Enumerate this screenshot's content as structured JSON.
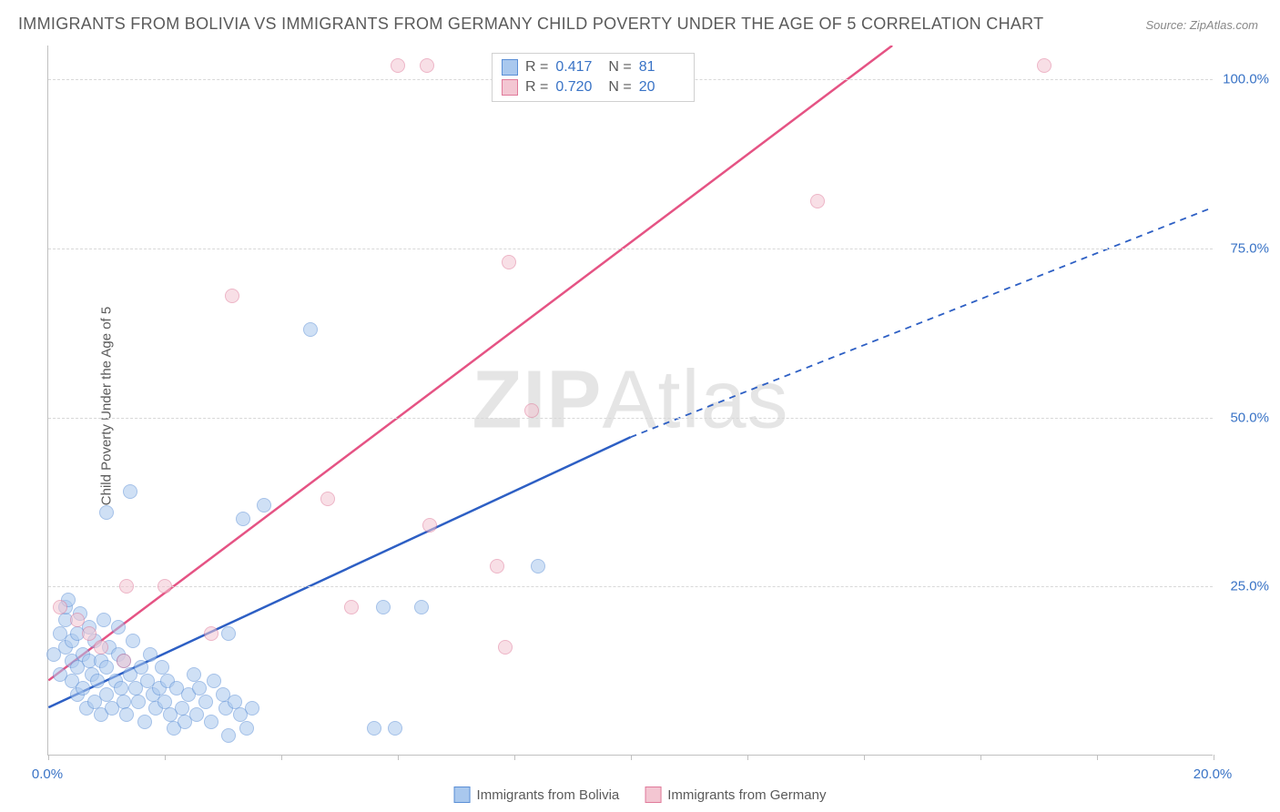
{
  "title": "IMMIGRANTS FROM BOLIVIA VS IMMIGRANTS FROM GERMANY CHILD POVERTY UNDER THE AGE OF 5 CORRELATION CHART",
  "source": "Source: ZipAtlas.com",
  "y_axis_label": "Child Poverty Under the Age of 5",
  "watermark_bold": "ZIP",
  "watermark_light": "Atlas",
  "chart": {
    "type": "scatter-with-regression",
    "xlim": [
      0,
      20
    ],
    "ylim": [
      0,
      105
    ],
    "x_ticks": [
      0,
      2,
      4,
      6,
      8,
      10,
      12,
      14,
      16,
      18,
      20
    ],
    "x_tick_labels": [
      "0.0%",
      "",
      "",
      "",
      "",
      "",
      "",
      "",
      "",
      "",
      "20.0%"
    ],
    "y_ticks": [
      25,
      50,
      75,
      100
    ],
    "y_tick_labels": [
      "25.0%",
      "50.0%",
      "75.0%",
      "100.0%"
    ],
    "grid_color": "#d8d8d8",
    "axis_color": "#c0c0c0",
    "background": "#ffffff",
    "tick_label_color": "#3973c6",
    "series": [
      {
        "name": "Immigrants from Bolivia",
        "color_fill": "#a9c8ee",
        "color_stroke": "#5b8fd6",
        "line_color": "#2d5fc4",
        "r": "0.417",
        "n": "81",
        "regression_solid": {
          "x1": 0,
          "y1": 7,
          "x2": 10,
          "y2": 47
        },
        "regression_dashed": {
          "x1": 10,
          "y1": 47,
          "x2": 20,
          "y2": 81
        },
        "points": [
          [
            0.1,
            15
          ],
          [
            0.2,
            18
          ],
          [
            0.2,
            12
          ],
          [
            0.3,
            20
          ],
          [
            0.3,
            16
          ],
          [
            0.3,
            22
          ],
          [
            0.35,
            23
          ],
          [
            0.4,
            14
          ],
          [
            0.4,
            17
          ],
          [
            0.4,
            11
          ],
          [
            0.5,
            9
          ],
          [
            0.5,
            13
          ],
          [
            0.5,
            18
          ],
          [
            0.55,
            21
          ],
          [
            0.6,
            15
          ],
          [
            0.6,
            10
          ],
          [
            0.65,
            7
          ],
          [
            0.7,
            19
          ],
          [
            0.7,
            14
          ],
          [
            0.75,
            12
          ],
          [
            0.8,
            8
          ],
          [
            0.8,
            17
          ],
          [
            0.85,
            11
          ],
          [
            0.9,
            6
          ],
          [
            0.9,
            14
          ],
          [
            0.95,
            20
          ],
          [
            1.0,
            9
          ],
          [
            1.0,
            13
          ],
          [
            1.05,
            16
          ],
          [
            1.1,
            7
          ],
          [
            1.15,
            11
          ],
          [
            1.2,
            15
          ],
          [
            1.2,
            19
          ],
          [
            1.25,
            10
          ],
          [
            1.3,
            8
          ],
          [
            1.3,
            14
          ],
          [
            1.35,
            6
          ],
          [
            1.4,
            12
          ],
          [
            1.45,
            17
          ],
          [
            1.5,
            10
          ],
          [
            1.55,
            8
          ],
          [
            1.6,
            13
          ],
          [
            1.65,
            5
          ],
          [
            1.7,
            11
          ],
          [
            1.75,
            15
          ],
          [
            1.8,
            9
          ],
          [
            1.85,
            7
          ],
          [
            1.9,
            10
          ],
          [
            1.95,
            13
          ],
          [
            2.0,
            8
          ],
          [
            2.05,
            11
          ],
          [
            2.1,
            6
          ],
          [
            2.15,
            4
          ],
          [
            2.2,
            10
          ],
          [
            2.3,
            7
          ],
          [
            2.35,
            5
          ],
          [
            2.4,
            9
          ],
          [
            2.5,
            12
          ],
          [
            2.55,
            6
          ],
          [
            2.6,
            10
          ],
          [
            2.7,
            8
          ],
          [
            2.8,
            5
          ],
          [
            2.85,
            11
          ],
          [
            3.0,
            9
          ],
          [
            3.05,
            7
          ],
          [
            3.1,
            18
          ],
          [
            3.1,
            3
          ],
          [
            3.2,
            8
          ],
          [
            3.3,
            6
          ],
          [
            3.35,
            35
          ],
          [
            3.4,
            4
          ],
          [
            3.5,
            7
          ],
          [
            3.7,
            37
          ],
          [
            4.5,
            63
          ],
          [
            5.6,
            4
          ],
          [
            5.95,
            4
          ],
          [
            5.75,
            22
          ],
          [
            6.4,
            22
          ],
          [
            8.4,
            28
          ],
          [
            1.4,
            39
          ],
          [
            1.0,
            36
          ]
        ]
      },
      {
        "name": "Immigrants from Germany",
        "color_fill": "#f3c6d2",
        "color_stroke": "#e07a9a",
        "line_color": "#e55384",
        "r": "0.720",
        "n": "20",
        "regression_solid": {
          "x1": 0,
          "y1": 11,
          "x2": 14.5,
          "y2": 105
        },
        "points": [
          [
            0.2,
            22
          ],
          [
            0.5,
            20
          ],
          [
            0.7,
            18
          ],
          [
            0.9,
            16
          ],
          [
            1.3,
            14
          ],
          [
            1.35,
            25
          ],
          [
            2.0,
            25
          ],
          [
            2.8,
            18
          ],
          [
            3.15,
            68
          ],
          [
            4.8,
            38
          ],
          [
            5.2,
            22
          ],
          [
            6.0,
            102
          ],
          [
            6.5,
            102
          ],
          [
            6.55,
            34
          ],
          [
            7.7,
            28
          ],
          [
            7.9,
            73
          ],
          [
            8.3,
            51
          ],
          [
            7.85,
            16
          ],
          [
            13.2,
            82
          ],
          [
            17.1,
            102
          ]
        ]
      }
    ]
  },
  "legend_top": [
    {
      "swatch_fill": "#a9c8ee",
      "swatch_stroke": "#5b8fd6",
      "r_label": "R =",
      "r_val": "0.417",
      "n_label": "N =",
      "n_val": "81"
    },
    {
      "swatch_fill": "#f3c6d2",
      "swatch_stroke": "#e07a9a",
      "r_label": "R =",
      "r_val": "0.720",
      "n_label": "N =",
      "n_val": "20"
    }
  ],
  "legend_bottom": [
    {
      "swatch_fill": "#a9c8ee",
      "swatch_stroke": "#5b8fd6",
      "label": "Immigrants from Bolivia"
    },
    {
      "swatch_fill": "#f3c6d2",
      "swatch_stroke": "#e07a9a",
      "label": "Immigrants from Germany"
    }
  ]
}
